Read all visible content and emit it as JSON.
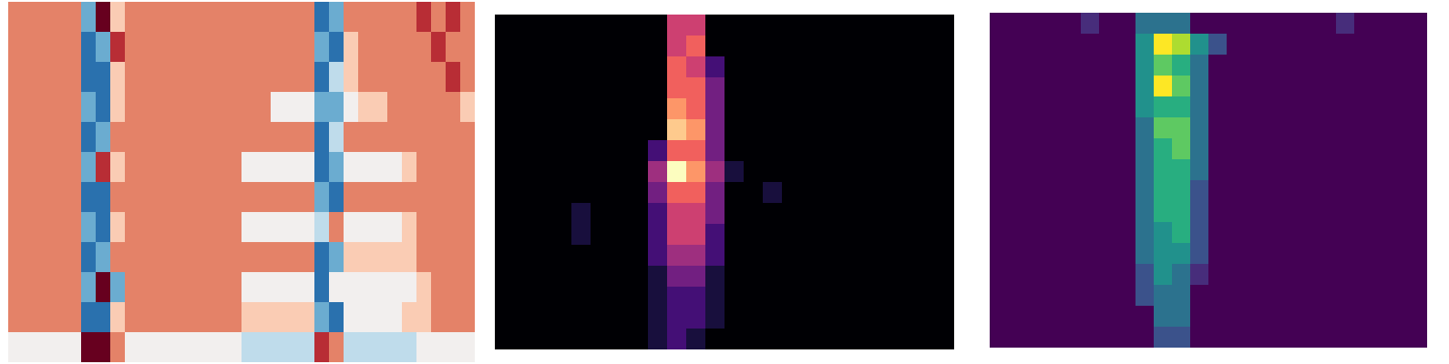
{
  "chart_data": [
    {
      "type": "heatmap",
      "color": "coolwarm",
      "tick_labels": false,
      "cells": [
        [
          2,
          2,
          2,
          2,
          2,
          -2,
          4,
          1,
          2,
          2,
          2,
          2,
          2,
          2,
          2,
          2,
          2,
          2,
          2,
          2,
          2,
          -3,
          -2,
          2,
          2,
          2,
          2,
          2,
          3,
          2,
          3,
          2
        ],
        [
          2,
          2,
          2,
          2,
          2,
          -3,
          -2,
          3,
          2,
          2,
          2,
          2,
          2,
          2,
          2,
          2,
          2,
          2,
          2,
          2,
          2,
          -2,
          -3,
          1,
          2,
          2,
          2,
          2,
          2,
          3,
          2,
          2
        ],
        [
          2,
          2,
          2,
          2,
          2,
          -3,
          -3,
          1,
          2,
          2,
          2,
          2,
          2,
          2,
          2,
          2,
          2,
          2,
          2,
          2,
          2,
          -3,
          -1,
          1,
          2,
          2,
          2,
          2,
          2,
          2,
          3,
          2
        ],
        [
          2,
          2,
          2,
          2,
          2,
          -2,
          -3,
          1,
          2,
          2,
          2,
          2,
          2,
          2,
          2,
          2,
          2,
          2,
          0,
          0,
          0,
          -2,
          -2,
          0,
          1,
          1,
          2,
          2,
          2,
          2,
          2,
          1
        ],
        [
          2,
          2,
          2,
          2,
          2,
          -3,
          -2,
          2,
          2,
          2,
          2,
          2,
          2,
          2,
          2,
          2,
          2,
          2,
          2,
          2,
          2,
          -3,
          -1,
          2,
          2,
          2,
          2,
          2,
          2,
          2,
          2,
          2
        ],
        [
          2,
          2,
          2,
          2,
          2,
          -2,
          3,
          1,
          2,
          2,
          2,
          2,
          2,
          2,
          2,
          2,
          0,
          0,
          0,
          0,
          0,
          -3,
          -2,
          0,
          0,
          0,
          0,
          1,
          2,
          2,
          2,
          2
        ],
        [
          2,
          2,
          2,
          2,
          2,
          -3,
          -3,
          2,
          2,
          2,
          2,
          2,
          2,
          2,
          2,
          2,
          2,
          2,
          2,
          2,
          2,
          -2,
          -3,
          2,
          2,
          2,
          2,
          2,
          2,
          2,
          2,
          2
        ],
        [
          2,
          2,
          2,
          2,
          2,
          -2,
          -3,
          1,
          2,
          2,
          2,
          2,
          2,
          2,
          2,
          2,
          0,
          0,
          0,
          0,
          0,
          -1,
          2,
          0,
          0,
          0,
          0,
          1,
          2,
          2,
          2,
          2
        ],
        [
          2,
          2,
          2,
          2,
          2,
          -3,
          -2,
          2,
          2,
          2,
          2,
          2,
          2,
          2,
          2,
          2,
          2,
          2,
          2,
          2,
          2,
          -3,
          -2,
          1,
          1,
          1,
          1,
          1,
          2,
          2,
          2,
          2
        ],
        [
          2,
          2,
          2,
          2,
          2,
          -2,
          4,
          -2,
          2,
          2,
          2,
          2,
          2,
          2,
          2,
          2,
          0,
          0,
          0,
          0,
          0,
          -3,
          0,
          0,
          0,
          0,
          0,
          0,
          1,
          2,
          2,
          2
        ],
        [
          2,
          2,
          2,
          2,
          2,
          -3,
          -3,
          1,
          2,
          2,
          2,
          2,
          2,
          2,
          2,
          2,
          1,
          1,
          1,
          1,
          1,
          -2,
          -3,
          0,
          0,
          0,
          0,
          1,
          1,
          2,
          2,
          2
        ],
        [
          0,
          0,
          0,
          0,
          0,
          4,
          4,
          2,
          0,
          0,
          0,
          0,
          0,
          0,
          0,
          0,
          -1,
          -1,
          -1,
          -1,
          -1,
          3,
          2,
          -1,
          -1,
          -1,
          -1,
          -1,
          0,
          0,
          0,
          0
        ]
      ]
    },
    {
      "type": "heatmap",
      "color": "magma",
      "tick_labels": false,
      "cells": [
        [
          0,
          0,
          0,
          0,
          0,
          0,
          0,
          0,
          0,
          5,
          5,
          0,
          0,
          0,
          0,
          0,
          0,
          0,
          0,
          0,
          0,
          0,
          0,
          0
        ],
        [
          0,
          0,
          0,
          0,
          0,
          0,
          0,
          0,
          0,
          5,
          6,
          0,
          0,
          0,
          0,
          0,
          0,
          0,
          0,
          0,
          0,
          0,
          0,
          0
        ],
        [
          0,
          0,
          0,
          0,
          0,
          0,
          0,
          0,
          0,
          6,
          5,
          2,
          0,
          0,
          0,
          0,
          0,
          0,
          0,
          0,
          0,
          0,
          0,
          0
        ],
        [
          0,
          0,
          0,
          0,
          0,
          0,
          0,
          0,
          0,
          6,
          6,
          3,
          0,
          0,
          0,
          0,
          0,
          0,
          0,
          0,
          0,
          0,
          0,
          0
        ],
        [
          0,
          0,
          0,
          0,
          0,
          0,
          0,
          0,
          0,
          7,
          6,
          3,
          0,
          0,
          0,
          0,
          0,
          0,
          0,
          0,
          0,
          0,
          0,
          0
        ],
        [
          0,
          0,
          0,
          0,
          0,
          0,
          0,
          0,
          0,
          8,
          7,
          3,
          0,
          0,
          0,
          0,
          0,
          0,
          0,
          0,
          0,
          0,
          0,
          0
        ],
        [
          0,
          0,
          0,
          0,
          0,
          0,
          0,
          0,
          2,
          6,
          6,
          3,
          0,
          0,
          0,
          0,
          0,
          0,
          0,
          0,
          0,
          0,
          0,
          0
        ],
        [
          0,
          0,
          0,
          0,
          0,
          0,
          0,
          0,
          4,
          9,
          7,
          4,
          1,
          0,
          0,
          0,
          0,
          0,
          0,
          0,
          0,
          0,
          0,
          0
        ],
        [
          0,
          0,
          0,
          0,
          0,
          0,
          0,
          0,
          3,
          6,
          6,
          3,
          0,
          0,
          1,
          0,
          0,
          0,
          0,
          0,
          0,
          0,
          0,
          0
        ],
        [
          0,
          0,
          0,
          0,
          1,
          0,
          0,
          0,
          2,
          5,
          5,
          3,
          0,
          0,
          0,
          0,
          0,
          0,
          0,
          0,
          0,
          0,
          0,
          0
        ],
        [
          0,
          0,
          0,
          0,
          1,
          0,
          0,
          0,
          2,
          5,
          5,
          2,
          0,
          0,
          0,
          0,
          0,
          0,
          0,
          0,
          0,
          0,
          0,
          0
        ],
        [
          0,
          0,
          0,
          0,
          0,
          0,
          0,
          0,
          2,
          4,
          4,
          2,
          0,
          0,
          0,
          0,
          0,
          0,
          0,
          0,
          0,
          0,
          0,
          0
        ],
        [
          0,
          0,
          0,
          0,
          0,
          0,
          0,
          0,
          1,
          3,
          3,
          1,
          0,
          0,
          0,
          0,
          0,
          0,
          0,
          0,
          0,
          0,
          0,
          0
        ],
        [
          0,
          0,
          0,
          0,
          0,
          0,
          0,
          0,
          1,
          2,
          2,
          1,
          0,
          0,
          0,
          0,
          0,
          0,
          0,
          0,
          0,
          0,
          0,
          0
        ],
        [
          0,
          0,
          0,
          0,
          0,
          0,
          0,
          0,
          1,
          2,
          2,
          1,
          0,
          0,
          0,
          0,
          0,
          0,
          0,
          0,
          0,
          0,
          0,
          0
        ],
        [
          0,
          0,
          0,
          0,
          0,
          0,
          0,
          0,
          1,
          2,
          1,
          0,
          0,
          0,
          0,
          0,
          0,
          0,
          0,
          0,
          0,
          0,
          0,
          0
        ]
      ]
    },
    {
      "type": "heatmap",
      "color": "viridis",
      "tick_labels": false,
      "cells": [
        [
          0,
          0,
          0,
          0,
          0,
          1,
          0,
          0,
          3,
          3,
          3,
          0,
          0,
          0,
          0,
          0,
          0,
          0,
          0,
          1,
          0,
          0,
          0,
          0
        ],
        [
          0,
          0,
          0,
          0,
          0,
          0,
          0,
          0,
          4,
          8,
          7,
          4,
          2,
          0,
          0,
          0,
          0,
          0,
          0,
          0,
          0,
          0,
          0,
          0
        ],
        [
          0,
          0,
          0,
          0,
          0,
          0,
          0,
          0,
          4,
          6,
          5,
          3,
          0,
          0,
          0,
          0,
          0,
          0,
          0,
          0,
          0,
          0,
          0,
          0
        ],
        [
          0,
          0,
          0,
          0,
          0,
          0,
          0,
          0,
          4,
          8,
          6,
          3,
          0,
          0,
          0,
          0,
          0,
          0,
          0,
          0,
          0,
          0,
          0,
          0
        ],
        [
          0,
          0,
          0,
          0,
          0,
          0,
          0,
          0,
          4,
          5,
          5,
          3,
          0,
          0,
          0,
          0,
          0,
          0,
          0,
          0,
          0,
          0,
          0,
          0
        ],
        [
          0,
          0,
          0,
          0,
          0,
          0,
          0,
          0,
          3,
          6,
          6,
          3,
          0,
          0,
          0,
          0,
          0,
          0,
          0,
          0,
          0,
          0,
          0,
          0
        ],
        [
          0,
          0,
          0,
          0,
          0,
          0,
          0,
          0,
          3,
          5,
          6,
          3,
          0,
          0,
          0,
          0,
          0,
          0,
          0,
          0,
          0,
          0,
          0,
          0
        ],
        [
          0,
          0,
          0,
          0,
          0,
          0,
          0,
          0,
          3,
          5,
          5,
          3,
          0,
          0,
          0,
          0,
          0,
          0,
          0,
          0,
          0,
          0,
          0,
          0
        ],
        [
          0,
          0,
          0,
          0,
          0,
          0,
          0,
          0,
          3,
          5,
          5,
          2,
          0,
          0,
          0,
          0,
          0,
          0,
          0,
          0,
          0,
          0,
          0,
          0
        ],
        [
          0,
          0,
          0,
          0,
          0,
          0,
          0,
          0,
          3,
          5,
          5,
          2,
          0,
          0,
          0,
          0,
          0,
          0,
          0,
          0,
          0,
          0,
          0,
          0
        ],
        [
          0,
          0,
          0,
          0,
          0,
          0,
          0,
          0,
          3,
          4,
          5,
          2,
          0,
          0,
          0,
          0,
          0,
          0,
          0,
          0,
          0,
          0,
          0,
          0
        ],
        [
          0,
          0,
          0,
          0,
          0,
          0,
          0,
          0,
          3,
          4,
          4,
          2,
          0,
          0,
          0,
          0,
          0,
          0,
          0,
          0,
          0,
          0,
          0,
          0
        ],
        [
          0,
          0,
          0,
          0,
          0,
          0,
          0,
          0,
          2,
          4,
          3,
          1,
          0,
          0,
          0,
          0,
          0,
          0,
          0,
          0,
          0,
          0,
          0,
          0
        ],
        [
          0,
          0,
          0,
          0,
          0,
          0,
          0,
          0,
          2,
          3,
          3,
          0,
          0,
          0,
          0,
          0,
          0,
          0,
          0,
          0,
          0,
          0,
          0,
          0
        ],
        [
          0,
          0,
          0,
          0,
          0,
          0,
          0,
          0,
          0,
          3,
          3,
          0,
          0,
          0,
          0,
          0,
          0,
          0,
          0,
          0,
          0,
          0,
          0,
          0
        ],
        [
          0,
          0,
          0,
          0,
          0,
          0,
          0,
          0,
          0,
          2,
          2,
          0,
          0,
          0,
          0,
          0,
          0,
          0,
          0,
          0,
          0,
          0,
          0,
          0
        ]
      ]
    }
  ]
}
